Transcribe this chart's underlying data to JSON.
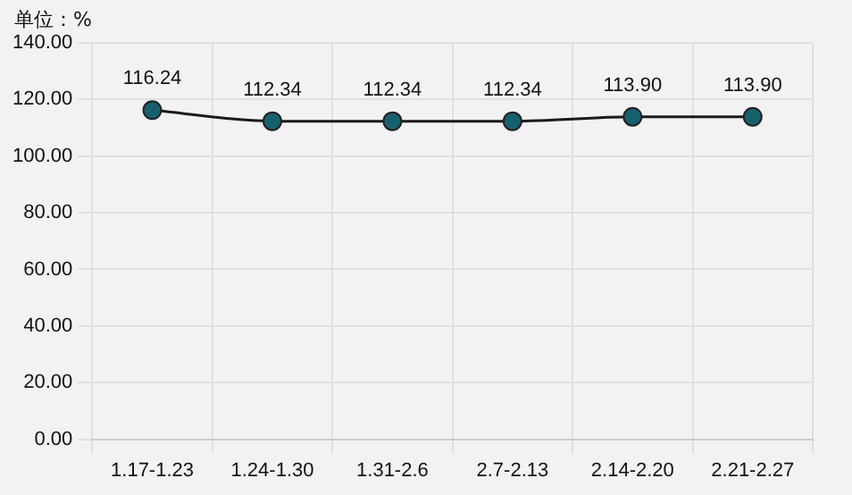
{
  "chart_data": {
    "type": "line",
    "ylabel": "单位：%",
    "categories": [
      "1.17-1.23",
      "1.24-1.30",
      "1.31-2.6",
      "2.7-2.13",
      "2.14-2.20",
      "2.21-2.27"
    ],
    "series": [
      {
        "color": "#1a1a1a",
        "colors": [
          "#17606e",
          "#17606e",
          "#17606e",
          "#17606e",
          "#17606e",
          "#17606e"
        ],
        "values": [
          116.24,
          112.34,
          112.34,
          112.34,
          113.9,
          113.9
        ],
        "value_labels": [
          "116.24",
          "112.34",
          "112.34",
          "112.34",
          "113.90",
          "113.90"
        ]
      }
    ],
    "ylim": [
      0,
      140
    ],
    "yticks": [
      {
        "value": 0,
        "label": "0.00"
      },
      {
        "value": 20,
        "label": "20.00"
      },
      {
        "value": 40,
        "label": "40.00"
      },
      {
        "value": 60,
        "label": "60.00"
      },
      {
        "value": 80,
        "label": "80.00"
      },
      {
        "value": 100,
        "label": "100.00"
      },
      {
        "value": 120,
        "label": "120.00"
      },
      {
        "value": 140,
        "label": "140.00"
      }
    ],
    "grid": true,
    "marker": "circle",
    "legend": false
  }
}
